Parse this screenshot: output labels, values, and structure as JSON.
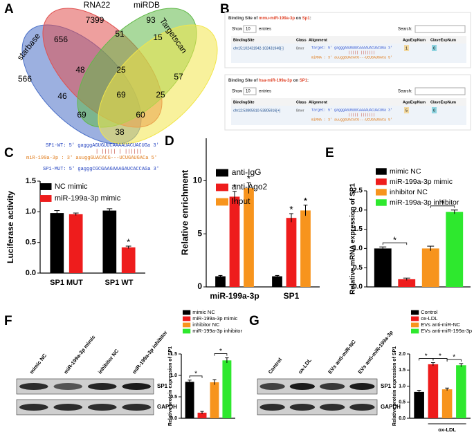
{
  "venn": {
    "panel": "A",
    "sets": [
      {
        "name": "starbase",
        "color": "#4a6fc7"
      },
      {
        "name": "RNA22",
        "color": "#e0504f"
      },
      {
        "name": "miRDB",
        "color": "#62b94a"
      },
      {
        "name": "Targetscan",
        "color": "#f2e64a"
      }
    ],
    "regions": [
      7399,
      93,
      656,
      51,
      15,
      566,
      48,
      25,
      57,
      46,
      69,
      25,
      69,
      60,
      38
    ]
  },
  "binding_sites": {
    "panel": "B",
    "tables": [
      {
        "title": [
          "Binding Site of ",
          "mmu-miR-199a-3p",
          " on ",
          "Sp1",
          ":"
        ],
        "show": "Show",
        "entries_count": 10,
        "entries": "entries",
        "search": "Search:",
        "columns": [
          "BindingSite",
          "Class",
          "Alignment",
          "AgoExpNum",
          "ClaveExpNum"
        ],
        "row": {
          "site": "chr15:102431942-102431948[-]",
          "class": "8mer",
          "alignment": [
            "Target: 5' gagggAGUGUUCAAAAUACUACUGa 3'",
            "||||| |||||||",
            "miRNA : 3' auuggGUACACG---UCUGAUGACa 5'"
          ],
          "ago": 1,
          "clave": 0
        }
      },
      {
        "title": [
          "Binding Site of ",
          "hsa-miR-199a-3p",
          " on ",
          "SP1",
          ":"
        ],
        "show": "Show",
        "entries_count": 10,
        "entries": "entries",
        "search": "Search:",
        "columns": [
          "BindingSite",
          "Class",
          "Alignment",
          "AgoExpNum",
          "ClaveExpNum"
        ],
        "row": {
          "site": "chr12:53805910-53805916[+]",
          "class": "8mer",
          "alignment": [
            "Target: 5' gagggAGUGUUCAAAAUACUACUGa 3'",
            "||||| |||||||",
            "miRNA : 3' auuggGUACACG---UCUGAUGACa 5'"
          ],
          "ago": 5,
          "clave": 0
        }
      }
    ]
  },
  "sequences": [
    {
      "text": "SP1-WT: 5' gagggAGUGUUCAAAAUACUACUGa 3'",
      "color": "#1f3fbf"
    },
    {
      "text": "| |||||  | ||||||",
      "color": "#c0392b"
    },
    {
      "text": "miR-199a-3p : 3' auuggGUACACG---UCUGAUGACa 5'",
      "color": "#e07b1a"
    },
    {
      "text": "SP1-MUT: 5' gagggCGCGAAGAAAGAUCACCAGa 3'",
      "color": "#1f3fbf"
    }
  ],
  "blots": [
    {
      "lanes": [
        "mimic NC",
        "miR-199a-3p mimic",
        "inhibitor NC",
        "miR-199a-3p inhibitor"
      ],
      "bands": [
        "SP1",
        "GAPDH"
      ]
    },
    {
      "lanes": [
        "Control",
        "ox-LDL",
        "EVs anti-miR-NC",
        "EVs anti-miR-199a-3p"
      ],
      "bands": [
        "SP1",
        "GAPDH"
      ]
    }
  ],
  "chart_data": [
    {
      "type": "bar",
      "panel": "C",
      "ylabel": "Luciferase activity",
      "categories": [
        "SP1 MUT",
        "SP1 WT"
      ],
      "series": [
        {
          "name": "NC mimic",
          "color": "#000000",
          "values": [
            0.98,
            1.02
          ],
          "errors": [
            0.04,
            0.03
          ],
          "significance": [
            null,
            null
          ]
        },
        {
          "name": "miR-199a-3p mimic",
          "color": "#ee1c1c",
          "values": [
            0.96,
            0.42
          ],
          "errors": [
            0.02,
            0.02
          ],
          "significance": [
            null,
            "*"
          ]
        }
      ],
      "ylim": [
        0,
        1.5
      ],
      "yticks": [
        {
          "value": 0,
          "label": "0.0"
        },
        {
          "value": 0.5,
          "label": "0.5"
        },
        {
          "value": 1,
          "label": "1.0"
        },
        {
          "value": 1.5,
          "label": "1.5"
        }
      ]
    },
    {
      "type": "bar",
      "panel": "D",
      "ylabel": "Relative enrichment",
      "categories": [
        "miR-199a-3p",
        "SP1"
      ],
      "series": [
        {
          "name": "anti-IgG",
          "color": "#000000",
          "values": [
            1.0,
            1.0
          ],
          "errors": [
            0.08,
            0.08
          ],
          "significance": [
            null,
            null
          ]
        },
        {
          "name": "anti-Ago2",
          "color": "#ee1c1c",
          "values": [
            8.5,
            6.5
          ],
          "errors": [
            0.5,
            0.4
          ],
          "significance": [
            "*",
            "*"
          ]
        },
        {
          "name": "Input",
          "color": "#f7941d",
          "values": [
            9.3,
            7.2
          ],
          "errors": [
            0.5,
            0.5
          ],
          "significance": [
            "*",
            "*"
          ]
        }
      ],
      "ylim": [
        0,
        14
      ],
      "yticks": [
        0,
        5,
        10
      ]
    },
    {
      "type": "bar",
      "panel": "E",
      "ylabel": "Relative mRNA expression of SP1",
      "categories": [
        null
      ],
      "series": [
        {
          "name": "mimic NC",
          "color": "#000000",
          "values": [
            1.0
          ],
          "errors": [
            0.04
          ]
        },
        {
          "name": "miR-199a-3p mimic",
          "color": "#ee1c1c",
          "values": [
            0.2
          ],
          "errors": [
            0.03
          ]
        },
        {
          "name": "inhibitor NC",
          "color": "#f7941d",
          "values": [
            1.0
          ],
          "errors": [
            0.06
          ]
        },
        {
          "name": "miR-199a-3p inhibitor",
          "color": "#2ee82e",
          "values": [
            1.95
          ],
          "errors": [
            0.05
          ]
        }
      ],
      "brackets": [
        {
          "text": "*",
          "between": [
            "mimic NC",
            "miR-199a-3p mimic"
          ]
        },
        {
          "text": "*",
          "between": [
            "inhibitor NC",
            "miR-199a-3p inhibitor"
          ]
        }
      ],
      "ylim": [
        0,
        2.5
      ],
      "yticks": [
        {
          "value": 0,
          "label": "0.0"
        },
        {
          "value": 0.5,
          "label": "0.5"
        },
        {
          "value": 1,
          "label": "1.0"
        },
        {
          "value": 1.5,
          "label": "1.5"
        },
        {
          "value": 2,
          "label": "2.0"
        },
        {
          "value": 2.5,
          "label": "2.5"
        }
      ]
    },
    {
      "type": "bar",
      "panel": "F",
      "ylabel": "Relative protein expression of SP1",
      "categories": [
        null
      ],
      "series": [
        {
          "name": "mimic NC",
          "color": "#000000",
          "values": [
            0.85
          ],
          "errors": [
            0.04
          ]
        },
        {
          "name": "miR-199a-3p mimic",
          "color": "#ee1c1c",
          "values": [
            0.13
          ],
          "errors": [
            0.03
          ]
        },
        {
          "name": "inhibitor NC",
          "color": "#f7941d",
          "values": [
            0.84
          ],
          "errors": [
            0.06
          ]
        },
        {
          "name": "miR-199a-3p inhibitor",
          "color": "#2ee82e",
          "values": [
            1.35
          ],
          "errors": [
            0.06
          ]
        }
      ],
      "brackets": [
        {
          "text": "*",
          "between": [
            "mimic NC",
            "miR-199a-3p mimic"
          ]
        },
        {
          "text": "*",
          "between": [
            "inhibitor NC",
            "miR-199a-3p inhibitor"
          ]
        }
      ],
      "ylim": [
        0,
        1.5
      ],
      "yticks": [
        {
          "value": 0,
          "label": "0.0"
        },
        {
          "value": 0.5,
          "label": "0.5"
        },
        {
          "value": 1,
          "label": "1.0"
        },
        {
          "value": 1.5,
          "label": "1.5"
        }
      ]
    },
    {
      "type": "bar",
      "panel": "G",
      "ylabel": "Relative protein expression of SP1",
      "categories": [
        null
      ],
      "series": [
        {
          "name": "Control",
          "color": "#000000",
          "values": [
            0.82
          ],
          "errors": [
            0.05
          ]
        },
        {
          "name": "ox-LDL",
          "color": "#ee1c1c",
          "values": [
            1.68
          ],
          "errors": [
            0.05
          ]
        },
        {
          "name": "EVs anti-miR-NC",
          "color": "#f7941d",
          "values": [
            0.9
          ],
          "errors": [
            0.04
          ]
        },
        {
          "name": "EVs anti-miR-199a-3p",
          "color": "#2ee82e",
          "values": [
            1.65
          ],
          "errors": [
            0.05
          ]
        }
      ],
      "brackets": [
        {
          "text": "*",
          "between": [
            "Control",
            "ox-LDL"
          ]
        },
        {
          "text": "*",
          "between": [
            "ox-LDL",
            "EVs anti-miR-NC"
          ]
        },
        {
          "text": "*",
          "between": [
            "EVs anti-miR-NC",
            "EVs anti-miR-199a-3p"
          ]
        }
      ],
      "group_label": {
        "text": "ox-LDL",
        "span": [
          "ox-LDL",
          "EVs anti-miR-199a-3p"
        ]
      },
      "ylim": [
        0,
        2
      ],
      "yticks": [
        {
          "value": 0,
          "label": "0.0"
        },
        {
          "value": 0.5,
          "label": "0.5"
        },
        {
          "value": 1,
          "label": "1.0"
        },
        {
          "value": 1.5,
          "label": "1.5"
        },
        {
          "value": 2,
          "label": "2.0"
        }
      ]
    }
  ]
}
